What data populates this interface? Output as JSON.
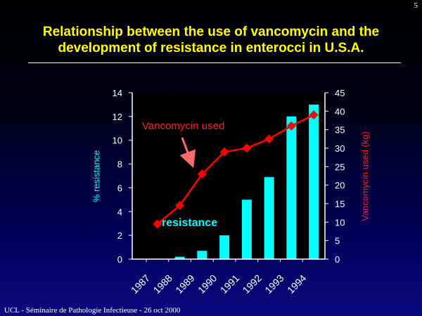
{
  "slide_number": "5",
  "title_lines": [
    "Relationship between the use of vancomycin and the",
    "development of resistance in enterocci in U.S.A."
  ],
  "footer": "UCL - Séminaire de Pathologie Infectieuse - 26 oct 2000",
  "colors": {
    "title": "#ffff00",
    "bars": "#00ffff",
    "line": "#ff0000",
    "plot_background": "#000000"
  },
  "chart_data": {
    "type": "bar+line",
    "x_tick_labels": [
      "1987",
      "1988",
      "1989",
      "1990",
      "1991",
      "1992",
      "1993",
      "1994"
    ],
    "bar_series": {
      "name": "resistance",
      "values": [
        0,
        0.2,
        0.7,
        2.0,
        5.0,
        6.9,
        12.0,
        13.0
      ]
    },
    "line_series": {
      "name": "Vancomycin used",
      "values": [
        9.5,
        14.5,
        23,
        29,
        30,
        32.5,
        36,
        39
      ]
    },
    "ylabel_left": "% resistance",
    "ylabel_right": "Vancomycin used (kg)",
    "ylim_left": [
      0,
      14
    ],
    "ylim_right": [
      0,
      45
    ],
    "yticks_left": [
      "0",
      "2",
      "4",
      "6",
      "8",
      "10",
      "12",
      "14"
    ],
    "yticks_right": [
      "0",
      "5",
      "10",
      "15",
      "20",
      "25",
      "30",
      "35",
      "40",
      "45"
    ],
    "grid": false
  }
}
